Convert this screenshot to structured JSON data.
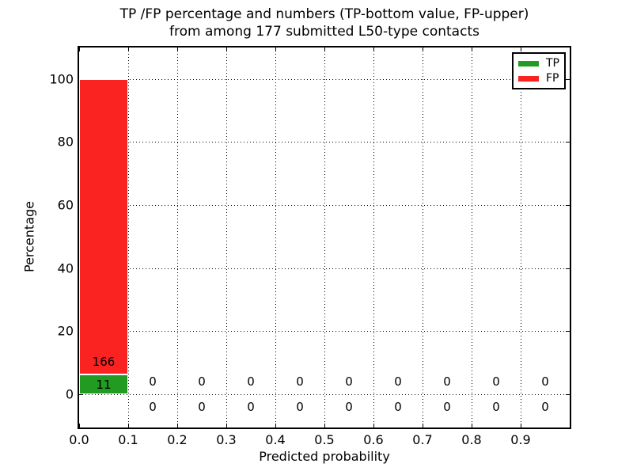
{
  "title": {
    "line1": "TP /FP percentage and numbers (TP-bottom value, FP-upper)",
    "line2": "from among 177 submitted L50-type contacts"
  },
  "x_axis": {
    "label": "Predicted probability",
    "tick_labels": [
      "0.0",
      "0.1",
      "0.2",
      "0.3",
      "0.4",
      "0.5",
      "0.6",
      "0.7",
      "0.8",
      "0.9"
    ]
  },
  "y_axis": {
    "label": "Percentage",
    "tick_labels": [
      "0",
      "20",
      "40",
      "60",
      "80",
      "100"
    ]
  },
  "legend": {
    "items": [
      {
        "label": "TP",
        "color": "#229b22"
      },
      {
        "label": "FP",
        "color": "#fb2222"
      }
    ]
  },
  "chart_data": {
    "type": "bar",
    "stacked": true,
    "title": "TP /FP percentage and numbers (TP-bottom value, FP-upper) from among 177 submitted L50-type contacts",
    "xlabel": "Predicted probability",
    "ylabel": "Percentage",
    "total_submitted": 177,
    "bin_width": 0.1,
    "categories": [
      0.05,
      0.15,
      0.25,
      0.35,
      0.45,
      0.55,
      0.65,
      0.75,
      0.85,
      0.95
    ],
    "series": [
      {
        "name": "TP",
        "color": "#229b22",
        "counts": [
          11,
          0,
          0,
          0,
          0,
          0,
          0,
          0,
          0,
          0
        ],
        "percentages": [
          6.21,
          0,
          0,
          0,
          0,
          0,
          0,
          0,
          0,
          0
        ]
      },
      {
        "name": "FP",
        "color": "#fb2222",
        "counts": [
          166,
          0,
          0,
          0,
          0,
          0,
          0,
          0,
          0,
          0
        ],
        "percentages": [
          93.79,
          0,
          0,
          0,
          0,
          0,
          0,
          0,
          0,
          0
        ]
      }
    ],
    "annotation_rule": "per bin: FP count shown above TP count (TP-bottom value, FP-upper)",
    "xlim": [
      0.0,
      1.0
    ],
    "ylim": [
      -10.5,
      110
    ],
    "xticks": [
      0.0,
      0.1,
      0.2,
      0.3,
      0.4,
      0.5,
      0.6,
      0.7,
      0.8,
      0.9
    ],
    "yticks": [
      0,
      20,
      40,
      60,
      80,
      100
    ],
    "grid": "dotted black, both axes",
    "legend_position": "upper right"
  }
}
